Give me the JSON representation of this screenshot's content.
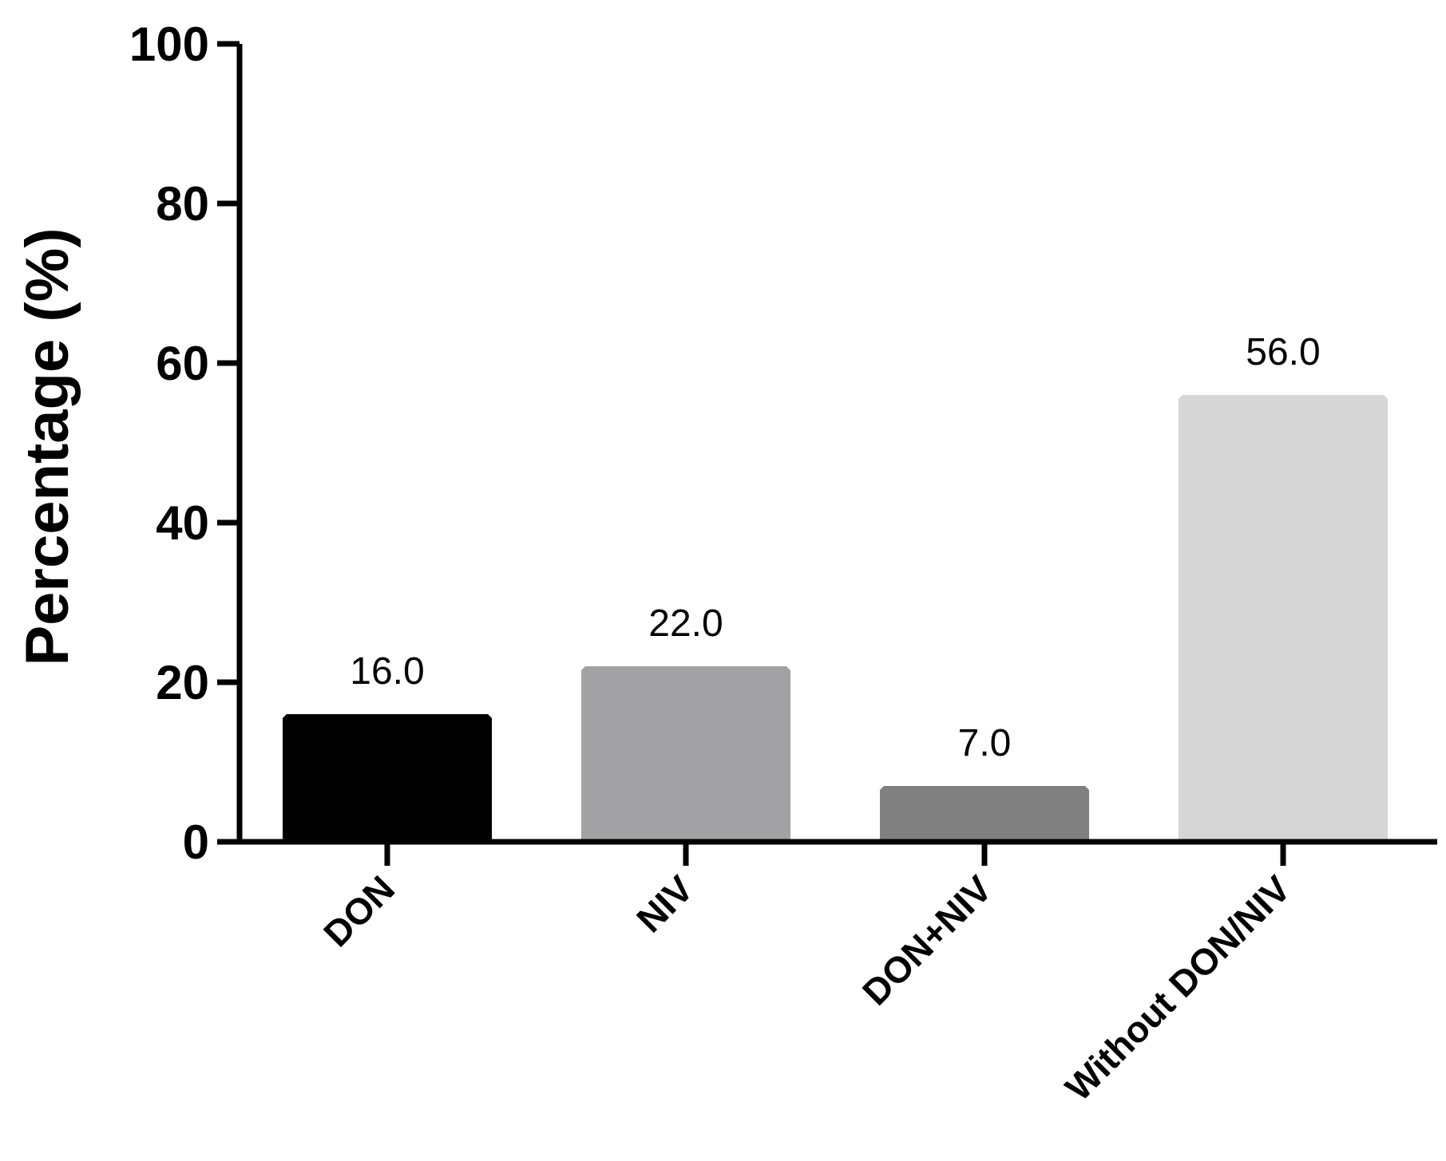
{
  "chart_data": {
    "type": "bar",
    "title": "",
    "xlabel": "",
    "ylabel": "Percentage (%)",
    "ylim": [
      0,
      100
    ],
    "yticks": [
      0,
      20,
      40,
      60,
      80,
      100
    ],
    "categories": [
      "DON",
      "NIV",
      "DON+NIV",
      "Without DON/NIV"
    ],
    "values": [
      16.0,
      22.0,
      7.0,
      56.0
    ],
    "value_labels": [
      "16.0",
      "22.0",
      "7.0",
      "56.0"
    ],
    "colors": [
      "#000000",
      "#a2a2a5",
      "#808080",
      "#d6d6d6"
    ],
    "grid": false,
    "legend": "none"
  }
}
